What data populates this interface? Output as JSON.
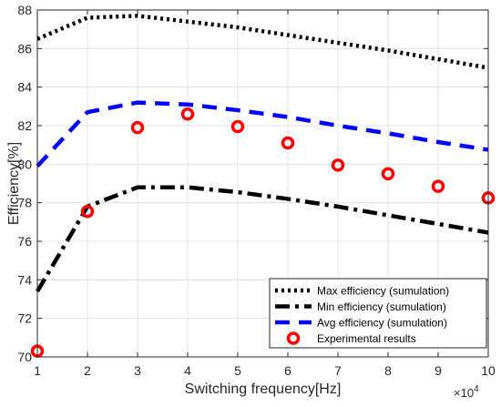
{
  "chart_data": {
    "type": "line",
    "title": "",
    "xlabel": "Switching frequency[Hz]",
    "ylabel": "Efficiency[%]",
    "x_exponent_base": "×10",
    "x_exponent_power": "4",
    "xlim": [
      1,
      10
    ],
    "ylim": [
      70,
      88
    ],
    "x_ticks": [
      1,
      2,
      3,
      4,
      5,
      6,
      7,
      8,
      9,
      10
    ],
    "y_ticks": [
      70,
      72,
      74,
      76,
      78,
      80,
      82,
      84,
      86,
      88
    ],
    "grid": true,
    "legend_position": "bottom-right",
    "series": [
      {
        "name": "Max efficiency (sumulation)",
        "style": "dotted",
        "color": "#000000",
        "x": [
          1,
          2,
          3,
          4,
          5,
          6,
          7,
          8,
          9,
          10
        ],
        "y": [
          86.5,
          87.6,
          87.7,
          87.4,
          87.1,
          86.7,
          86.3,
          85.9,
          85.45,
          85.0
        ]
      },
      {
        "name": "Min efficiency (sumulation)",
        "style": "dashdot",
        "color": "#000000",
        "x": [
          1,
          2,
          3,
          4,
          5,
          6,
          7,
          8,
          9,
          10
        ],
        "y": [
          73.4,
          77.8,
          78.8,
          78.8,
          78.55,
          78.2,
          77.8,
          77.35,
          76.9,
          76.45
        ]
      },
      {
        "name": "Avg efficiency (sumulation)",
        "style": "dashed",
        "color": "#0000ff",
        "x": [
          1,
          2,
          3,
          4,
          5,
          6,
          7,
          8,
          9,
          10
        ],
        "y": [
          79.9,
          82.7,
          83.2,
          83.1,
          82.8,
          82.45,
          82.0,
          81.6,
          81.15,
          80.75
        ]
      },
      {
        "name": "Experimental results",
        "style": "markers",
        "color": "#ff0000",
        "x": [
          1,
          2,
          3,
          4,
          5,
          6,
          7,
          8,
          9,
          10
        ],
        "y": [
          70.3,
          77.55,
          81.9,
          82.6,
          81.95,
          81.1,
          79.95,
          79.5,
          78.85,
          78.25
        ]
      }
    ]
  }
}
